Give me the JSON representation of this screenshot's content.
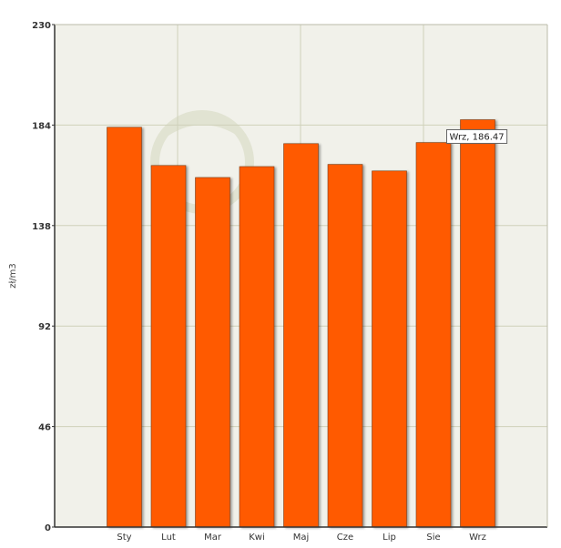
{
  "chart_data": {
    "type": "bar",
    "categories": [
      "Sty",
      "Lut",
      "Mar",
      "Kwi",
      "Maj",
      "Cze",
      "Lip",
      "Sie",
      "Wrz"
    ],
    "values": [
      183.0,
      165.5,
      160.0,
      165.0,
      175.5,
      166.0,
      163.0,
      176.0,
      186.47
    ],
    "title": "",
    "xlabel": "",
    "ylabel": "zł/m3",
    "ylim": [
      0,
      230
    ],
    "yticks": [
      0,
      46,
      92,
      138,
      184,
      230
    ],
    "grid": true,
    "bar_color": "#ff5a00",
    "plot_background": "#f1f1ea",
    "grid_color": "#cfd1ba",
    "tooltip": {
      "text": "Wrz,  186.47"
    }
  }
}
